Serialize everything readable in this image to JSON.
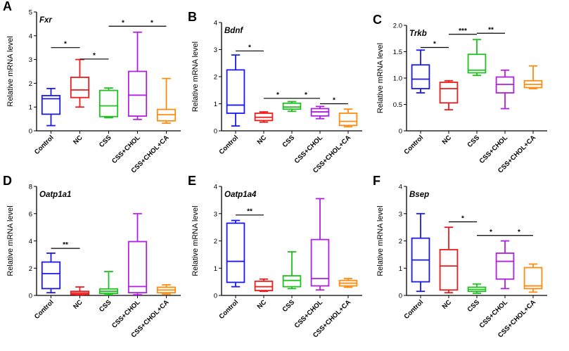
{
  "figure": {
    "categories": [
      "Control",
      "NC",
      "CSS",
      "CSS+CHOL",
      "CSS+CHOL+CA"
    ],
    "colors": [
      "#1a1aee",
      "#ee1c1c",
      "#20c020",
      "#b020e0",
      "#ff8c10"
    ],
    "ylabel": "Relative mRNA level"
  },
  "chart_data": [
    {
      "type": "box",
      "panel": "A",
      "title": "Fxr",
      "ylabel": "Relative mRNA level",
      "ylim": [
        0,
        5
      ],
      "yticks": [
        0,
        1,
        2,
        3,
        4,
        5
      ],
      "categories": [
        "Control",
        "NC",
        "CSS",
        "CSS+CHOL",
        "CSS+CHOL+CA"
      ],
      "boxes": [
        {
          "min": 0.22,
          "q1": 0.7,
          "median": 1.35,
          "q3": 1.48,
          "max": 1.78
        },
        {
          "min": 1.0,
          "q1": 1.4,
          "median": 1.72,
          "q3": 2.25,
          "max": 3.0
        },
        {
          "min": 0.55,
          "q1": 0.6,
          "median": 1.05,
          "q3": 1.7,
          "max": 1.8
        },
        {
          "min": 0.48,
          "q1": 0.62,
          "median": 1.5,
          "q3": 2.5,
          "max": 4.15
        },
        {
          "min": 0.32,
          "q1": 0.42,
          "median": 0.68,
          "q3": 0.9,
          "max": 2.2
        }
      ],
      "significance": [
        {
          "from": 0,
          "to": 1,
          "label": "*",
          "y": 3.5
        },
        {
          "from": 1,
          "to": 2,
          "label": "*",
          "y": 3.02
        },
        {
          "from": 2,
          "to": 3,
          "label": "*",
          "y": 4.4
        },
        {
          "from": 3,
          "to": 4,
          "label": "*",
          "y": 4.4
        }
      ]
    },
    {
      "type": "box",
      "panel": "B",
      "title": "Bdnf",
      "ylabel": "Relative mRNA level",
      "ylim": [
        0,
        4
      ],
      "yticks": [
        0,
        1,
        2,
        3,
        4
      ],
      "categories": [
        "Control",
        "NC",
        "CSS",
        "CSS+CHOL",
        "CSS+CHOL+CA"
      ],
      "boxes": [
        {
          "min": 0.18,
          "q1": 0.65,
          "median": 0.95,
          "q3": 2.25,
          "max": 2.8
        },
        {
          "min": 0.32,
          "q1": 0.38,
          "median": 0.5,
          "q3": 0.65,
          "max": 0.7
        },
        {
          "min": 0.72,
          "q1": 0.8,
          "median": 0.88,
          "q3": 1.02,
          "max": 1.08
        },
        {
          "min": 0.45,
          "q1": 0.55,
          "median": 0.7,
          "q3": 0.82,
          "max": 0.9
        },
        {
          "min": 0.15,
          "q1": 0.2,
          "median": 0.35,
          "q3": 0.65,
          "max": 0.8
        }
      ],
      "significance": [
        {
          "from": 0,
          "to": 1,
          "label": "*",
          "y": 2.95
        },
        {
          "from": 1,
          "to": 2,
          "label": "*",
          "y": 1.2
        },
        {
          "from": 2,
          "to": 3,
          "label": "*",
          "y": 1.2
        },
        {
          "from": 3,
          "to": 4,
          "label": "*",
          "y": 1.0
        }
      ]
    },
    {
      "type": "box",
      "panel": "C",
      "title": "Trkb",
      "ylabel": "Relative mRNA level",
      "ylim": [
        0,
        2.0
      ],
      "yticks": [
        0,
        0.5,
        1.0,
        1.5,
        2.0
      ],
      "ytick_labels": [
        "0",
        "0.5",
        "1.0",
        "1.5",
        "2.0"
      ],
      "categories": [
        "Control",
        "NC",
        "CSS",
        "CSS+CHOL",
        "CSS+CHOL+CA"
      ],
      "boxes": [
        {
          "min": 0.72,
          "q1": 0.8,
          "median": 0.98,
          "q3": 1.25,
          "max": 1.53
        },
        {
          "min": 0.4,
          "q1": 0.53,
          "median": 0.8,
          "q3": 0.92,
          "max": 0.95
        },
        {
          "min": 1.05,
          "q1": 1.1,
          "median": 1.15,
          "q3": 1.45,
          "max": 1.73
        },
        {
          "min": 0.42,
          "q1": 0.72,
          "median": 0.88,
          "q3": 1.02,
          "max": 1.15
        },
        {
          "min": 0.8,
          "q1": 0.82,
          "median": 0.88,
          "q3": 0.95,
          "max": 1.23
        }
      ],
      "significance": [
        {
          "from": 0,
          "to": 1,
          "label": "*",
          "y": 1.58
        },
        {
          "from": 1,
          "to": 2,
          "label": "***",
          "y": 1.83
        },
        {
          "from": 2,
          "to": 3,
          "label": "**",
          "y": 1.85
        }
      ]
    },
    {
      "type": "box",
      "panel": "D",
      "title": "Oatp1a1",
      "ylabel": "Relative mRNA level",
      "ylim": [
        0,
        8
      ],
      "yticks": [
        0,
        2,
        4,
        6,
        8
      ],
      "categories": [
        "Control",
        "NC",
        "CSS",
        "CSS+CHOL",
        "CSS+CHOL+CA"
      ],
      "boxes": [
        {
          "min": 0.2,
          "q1": 0.5,
          "median": 1.6,
          "q3": 2.45,
          "max": 3.1
        },
        {
          "min": 0.05,
          "q1": 0.08,
          "median": 0.18,
          "q3": 0.3,
          "max": 0.62
        },
        {
          "min": 0.05,
          "q1": 0.15,
          "median": 0.3,
          "q3": 0.48,
          "max": 1.75
        },
        {
          "min": 0.05,
          "q1": 0.2,
          "median": 0.65,
          "q3": 3.95,
          "max": 6.0
        },
        {
          "min": 0.1,
          "q1": 0.2,
          "median": 0.4,
          "q3": 0.6,
          "max": 0.78
        }
      ],
      "significance": [
        {
          "from": 0,
          "to": 1,
          "label": "**",
          "y": 3.45
        }
      ]
    },
    {
      "type": "box",
      "panel": "E",
      "title": "Oatp1a4",
      "ylabel": "Relative mRNA level",
      "ylim": [
        0,
        4
      ],
      "yticks": [
        0,
        1,
        2,
        3,
        4
      ],
      "categories": [
        "Control",
        "NC",
        "CSS",
        "CSS+CHOL",
        "CSS+CHOL+CA"
      ],
      "boxes": [
        {
          "min": 0.32,
          "q1": 0.48,
          "median": 1.25,
          "q3": 2.65,
          "max": 2.75
        },
        {
          "min": 0.15,
          "q1": 0.18,
          "median": 0.32,
          "q3": 0.52,
          "max": 0.6
        },
        {
          "min": 0.25,
          "q1": 0.32,
          "median": 0.55,
          "q3": 0.72,
          "max": 1.6
        },
        {
          "min": 0.2,
          "q1": 0.35,
          "median": 0.62,
          "q3": 2.05,
          "max": 3.55
        },
        {
          "min": 0.3,
          "q1": 0.35,
          "median": 0.45,
          "q3": 0.55,
          "max": 0.62
        }
      ],
      "significance": [
        {
          "from": 0,
          "to": 1,
          "label": "**",
          "y": 2.95
        }
      ]
    },
    {
      "type": "box",
      "panel": "F",
      "title": "Bsep",
      "ylabel": "Relative mRNA level",
      "ylim": [
        0,
        4
      ],
      "yticks": [
        0,
        1,
        2,
        3,
        4
      ],
      "categories": [
        "Control",
        "NC",
        "CSS",
        "CSS+CHOL",
        "CSS+CHOL+CA"
      ],
      "boxes": [
        {
          "min": 0.15,
          "q1": 0.5,
          "median": 1.3,
          "q3": 2.1,
          "max": 3.0
        },
        {
          "min": 0.1,
          "q1": 0.2,
          "median": 1.08,
          "q3": 1.68,
          "max": 2.5
        },
        {
          "min": 0.08,
          "q1": 0.15,
          "median": 0.22,
          "q3": 0.3,
          "max": 0.42
        },
        {
          "min": 0.25,
          "q1": 0.6,
          "median": 1.25,
          "q3": 1.55,
          "max": 2.0
        },
        {
          "min": 0.12,
          "q1": 0.25,
          "median": 0.35,
          "q3": 1.02,
          "max": 1.15
        }
      ],
      "significance": [
        {
          "from": 1,
          "to": 2,
          "label": "*",
          "y": 2.7
        },
        {
          "from": 2,
          "to": 3,
          "label": "*",
          "y": 2.2
        },
        {
          "from": 3,
          "to": 4,
          "label": "*",
          "y": 2.2
        }
      ]
    }
  ]
}
